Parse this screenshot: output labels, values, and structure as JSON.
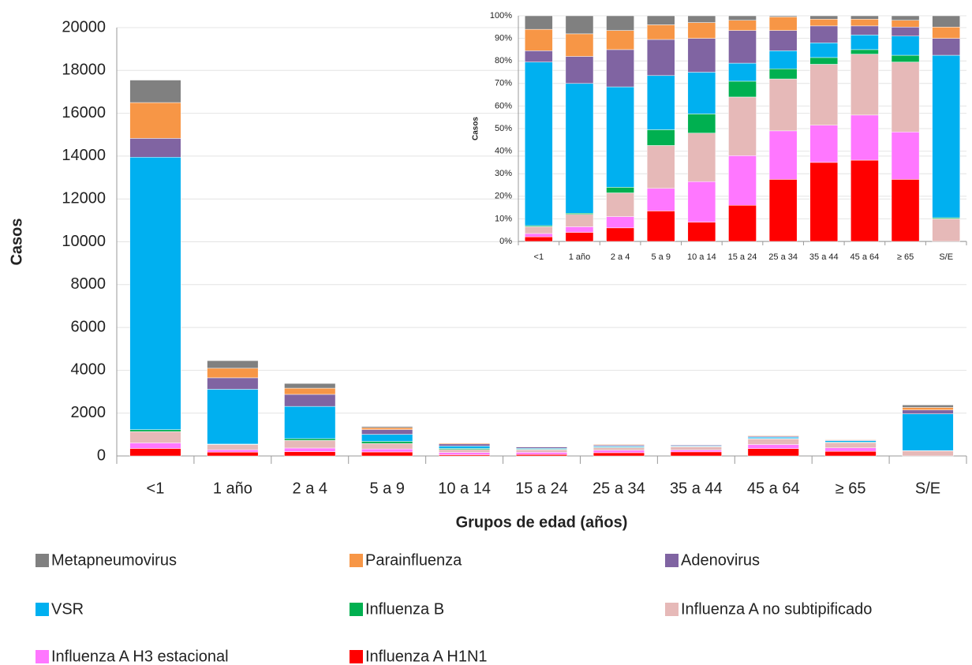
{
  "chart_data": [
    {
      "type": "bar",
      "stacked": true,
      "categories": [
        "<1",
        "1 año",
        "2 a 4",
        "5 a 9",
        "10 a 14",
        "15 a 24",
        "25 a 34",
        "35 a 44",
        "45 a 64",
        "≥ 65",
        "S/E"
      ],
      "x_label": "Grupos de edad (años)",
      "y_label": "Casos",
      "ylim": [
        0,
        20000
      ],
      "yticks": [
        0,
        2000,
        4000,
        6000,
        8000,
        10000,
        12000,
        14000,
        16000,
        18000,
        20000
      ],
      "grid": true,
      "series": [
        {
          "name": "Influenza A H1N1",
          "color": "#ff0000",
          "values": [
            350,
            180,
            200,
            185,
            55,
            70,
            150,
            190,
            345,
            215,
            0
          ]
        },
        {
          "name": "Influenza A H3 estacional",
          "color": "#ff77ff",
          "values": [
            260,
            110,
            170,
            140,
            110,
            100,
            115,
            90,
            190,
            165,
            0
          ]
        },
        {
          "name": "Influenza A no subtipificado",
          "color": "#e6b9b8",
          "values": [
            530,
            245,
            355,
            260,
            135,
            115,
            125,
            150,
            260,
            240,
            240
          ]
        },
        {
          "name": "Influenza B",
          "color": "#00b050",
          "values": [
            90,
            20,
            85,
            95,
            50,
            30,
            25,
            15,
            20,
            25,
            10
          ]
        },
        {
          "name": "VSR",
          "color": "#00b0f0",
          "values": [
            12720,
            2560,
            1505,
            330,
            115,
            40,
            45,
            35,
            60,
            65,
            1715
          ]
        },
        {
          "name": "Adenovirus",
          "color": "#8064a2",
          "values": [
            880,
            535,
            560,
            220,
            95,
            65,
            50,
            40,
            40,
            30,
            180
          ]
        },
        {
          "name": "Parainfluenza",
          "color": "#f79646",
          "values": [
            1670,
            445,
            290,
            90,
            45,
            20,
            30,
            17,
            30,
            25,
            120
          ]
        },
        {
          "name": "Metapneumovirus",
          "color": "#808080",
          "values": [
            1050,
            355,
            220,
            55,
            15,
            10,
            3,
            8,
            15,
            15,
            115
          ]
        }
      ]
    },
    {
      "type": "bar",
      "stacked": true,
      "categories": [
        "<1",
        "1 año",
        "2 a 4",
        "5 a 9",
        "10 a 14",
        "15 a 24",
        "25 a 34",
        "35 a 44",
        "45 a 64",
        "≥ 65",
        "S/E"
      ],
      "y_label": "Casos",
      "ylim": [
        0,
        100
      ],
      "yticks": [
        {
          "value": 0,
          "label": "0%"
        },
        {
          "value": 10,
          "label": "10%"
        },
        {
          "value": 20,
          "label": "20%"
        },
        {
          "value": 30,
          "label": "30%"
        },
        {
          "value": 40,
          "label": "40%"
        },
        {
          "value": 50,
          "label": "50%"
        },
        {
          "value": 60,
          "label": "60%"
        },
        {
          "value": 70,
          "label": "70%"
        },
        {
          "value": 80,
          "label": "80%"
        },
        {
          "value": 90,
          "label": "90%"
        },
        {
          "value": 100,
          "label": "100%"
        }
      ],
      "grid": true,
      "series": [
        {
          "color": "#ff0000",
          "values": [
            2,
            4,
            6,
            13.5,
            8.5,
            16,
            27.5,
            35,
            36,
            27.5,
            0
          ]
        },
        {
          "color": "#ff77ff",
          "values": [
            1.5,
            2.5,
            5,
            10,
            18,
            22,
            21.5,
            16.5,
            20,
            21,
            0
          ]
        },
        {
          "color": "#e6b9b8",
          "values": [
            3,
            5.5,
            10.5,
            19,
            21.5,
            26,
            23,
            27,
            27,
            31,
            10
          ]
        },
        {
          "color": "#00b050",
          "values": [
            0.5,
            0.5,
            2.5,
            7,
            8.5,
            7,
            4.5,
            3,
            2,
            3,
            0.5
          ]
        },
        {
          "color": "#00b0f0",
          "values": [
            72.5,
            57.5,
            44.5,
            24,
            18.5,
            8,
            8,
            6.5,
            6.5,
            8.5,
            72
          ]
        },
        {
          "color": "#8064a2",
          "values": [
            5,
            12,
            16.5,
            16,
            15,
            14.5,
            9,
            7.5,
            4,
            4,
            7.5
          ]
        },
        {
          "color": "#f79646",
          "values": [
            9.5,
            10,
            8.5,
            6.5,
            7,
            4.5,
            6,
            3,
            3,
            3,
            5
          ]
        },
        {
          "color": "#808080",
          "values": [
            6,
            8,
            6.5,
            4,
            3,
            2,
            0.5,
            1.5,
            1.5,
            2,
            5
          ]
        }
      ]
    }
  ]
}
